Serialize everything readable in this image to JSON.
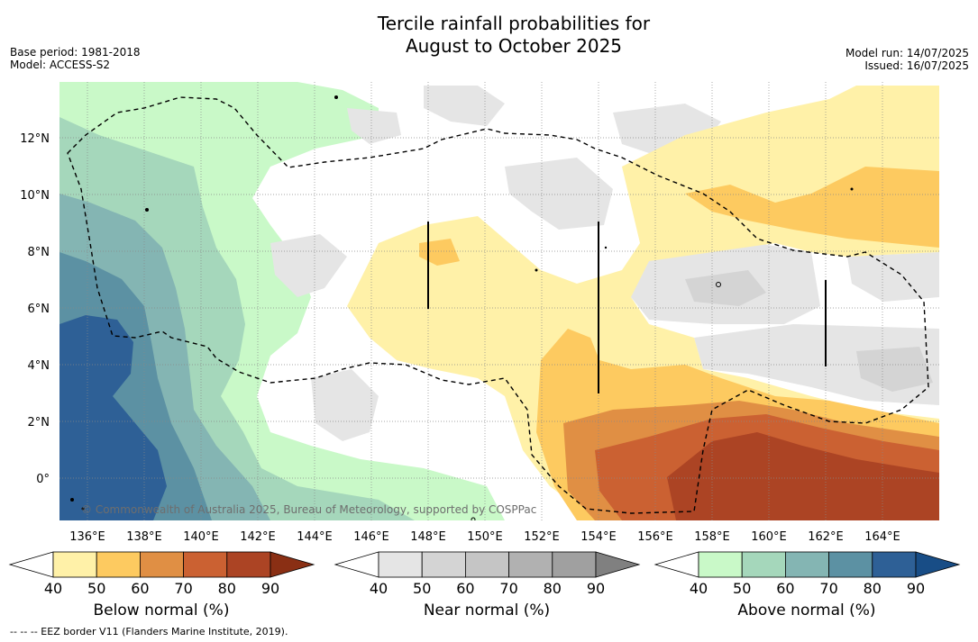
{
  "title_line1": "Tercile rainfall probabilities for",
  "title_line2": "August to October 2025",
  "base_period": "Base period: 1981-2018",
  "model": "Model: ACCESS-S2",
  "model_run": "Model run: 14/07/2025",
  "issued": "Issued: 16/07/2025",
  "copyright": "© Commonwealth of Australia 2025, Bureau of Meteorology, supported by COSPPac",
  "footer": "--  --  -- EEZ border V11 (Flanders Marine Institute, 2019).",
  "longitude_labels": [
    "136°E",
    "138°E",
    "140°E",
    "142°E",
    "144°E",
    "146°E",
    "148°E",
    "150°E",
    "152°E",
    "154°E",
    "156°E",
    "158°E",
    "160°E",
    "162°E",
    "164°E"
  ],
  "latitude_labels": [
    "12°N",
    "10°N",
    "8°N",
    "6°N",
    "4°N",
    "2°N",
    "0°"
  ],
  "colorbars": [
    {
      "label": "Below normal (%)",
      "ticks": [
        "40",
        "50",
        "60",
        "70",
        "80",
        "90"
      ],
      "colors": [
        "#fff1a8",
        "#fdca60",
        "#e08f44",
        "#cb6132",
        "#ac4424",
        "#8a2f14"
      ]
    },
    {
      "label": "Near normal (%)",
      "ticks": [
        "40",
        "50",
        "60",
        "70",
        "80",
        "90"
      ],
      "colors": [
        "#e5e5e5",
        "#d4d4d4",
        "#c5c5c5",
        "#b1b1b1",
        "#a0a0a0",
        "#808080"
      ]
    },
    {
      "label": "Above normal (%)",
      "ticks": [
        "40",
        "50",
        "60",
        "70",
        "80",
        "90"
      ],
      "colors": [
        "#c9f9c8",
        "#a5d7bb",
        "#84b5b3",
        "#5c91a3",
        "#2e6096",
        "#184d86"
      ]
    }
  ],
  "region_colors": {
    "above_40": "#c9f9c8",
    "above_50": "#a5d7bb",
    "above_60": "#84b5b3",
    "above_70": "#5c91a3",
    "above_80": "#2e6096",
    "below_40": "#fff1a8",
    "below_50": "#fdca60",
    "below_60": "#e08f44",
    "below_70": "#cb6132",
    "below_80": "#ac4424",
    "near_40": "#e5e5e5",
    "near_50": "#d4d4d4"
  }
}
